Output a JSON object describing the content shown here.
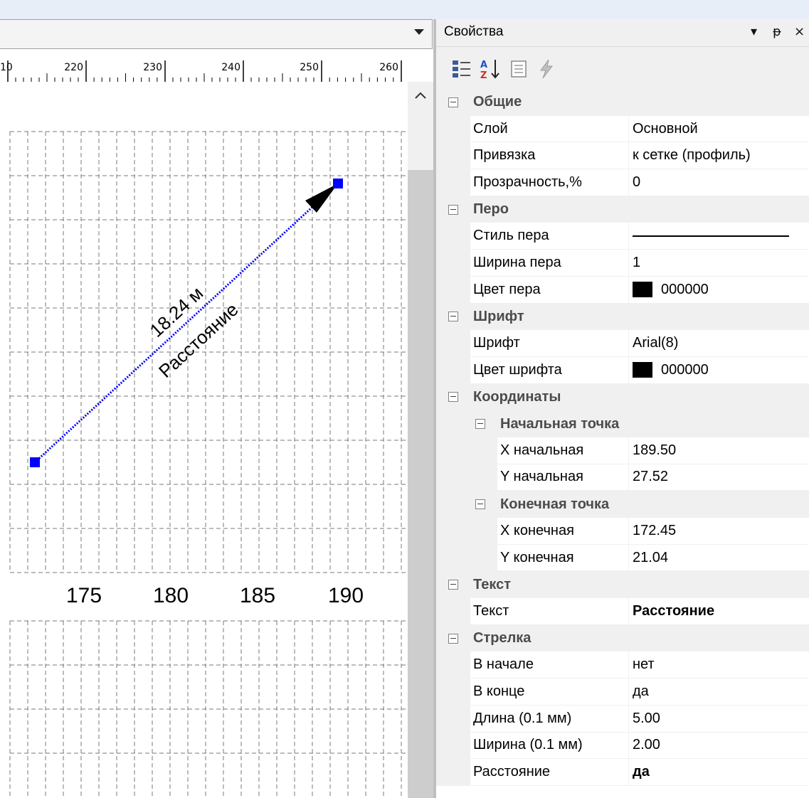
{
  "left": {
    "ruler_labels": [
      "10",
      "220",
      "230",
      "240",
      "250",
      "260"
    ],
    "axis_labels": [
      "175",
      "180",
      "185",
      "190"
    ],
    "measure_text": "18.24 м",
    "measure_caption": "Расстояние"
  },
  "panel": {
    "title": "Свойства",
    "dropdown_icon": "▾",
    "pin_icon": "ᵽ",
    "close_icon": "×"
  },
  "properties": [
    {
      "type": "category",
      "name": "Общие"
    },
    {
      "type": "prop",
      "name": "Слой",
      "value": "Основной"
    },
    {
      "type": "prop",
      "name": "Привязка",
      "value": "к сетке (профиль)"
    },
    {
      "type": "prop",
      "name": "Прозрачность,%",
      "value": "0"
    },
    {
      "type": "category",
      "name": "Перо"
    },
    {
      "type": "prop",
      "name": "Стиль пера",
      "value": "",
      "kind": "penline"
    },
    {
      "type": "prop",
      "name": "Ширина пера",
      "value": "1"
    },
    {
      "type": "prop",
      "name": "Цвет пера",
      "value": "000000",
      "kind": "color"
    },
    {
      "type": "category",
      "name": "Шрифт"
    },
    {
      "type": "prop",
      "name": "Шрифт",
      "value": "Arial(8)"
    },
    {
      "type": "prop",
      "name": "Цвет шрифта",
      "value": "000000",
      "kind": "color"
    },
    {
      "type": "category",
      "name": "Координаты"
    },
    {
      "type": "subcategory",
      "name": "Начальная точка"
    },
    {
      "type": "subprop",
      "name": "X начальная",
      "value": "189.50"
    },
    {
      "type": "subprop",
      "name": "Y начальная",
      "value": "27.52"
    },
    {
      "type": "subcategory",
      "name": "Конечная точка"
    },
    {
      "type": "subprop",
      "name": "X конечная",
      "value": "172.45"
    },
    {
      "type": "subprop",
      "name": "Y конечная",
      "value": "21.04"
    },
    {
      "type": "category",
      "name": "Текст"
    },
    {
      "type": "prop",
      "name": "Текст",
      "value": "Расстояние",
      "bold": true
    },
    {
      "type": "category",
      "name": "Стрелка"
    },
    {
      "type": "prop",
      "name": "В начале",
      "value": "нет"
    },
    {
      "type": "prop",
      "name": "В конце",
      "value": "да"
    },
    {
      "type": "prop",
      "name": "Длина (0.1 мм)",
      "value": "5.00"
    },
    {
      "type": "prop",
      "name": "Ширина (0.1 мм)",
      "value": "2.00"
    },
    {
      "type": "prop",
      "name": "Расстояние",
      "value": "да",
      "bold": true
    }
  ],
  "colors": {
    "line": "#0000ff",
    "marker": "#0000ff",
    "grid": "#7a7a7a"
  }
}
